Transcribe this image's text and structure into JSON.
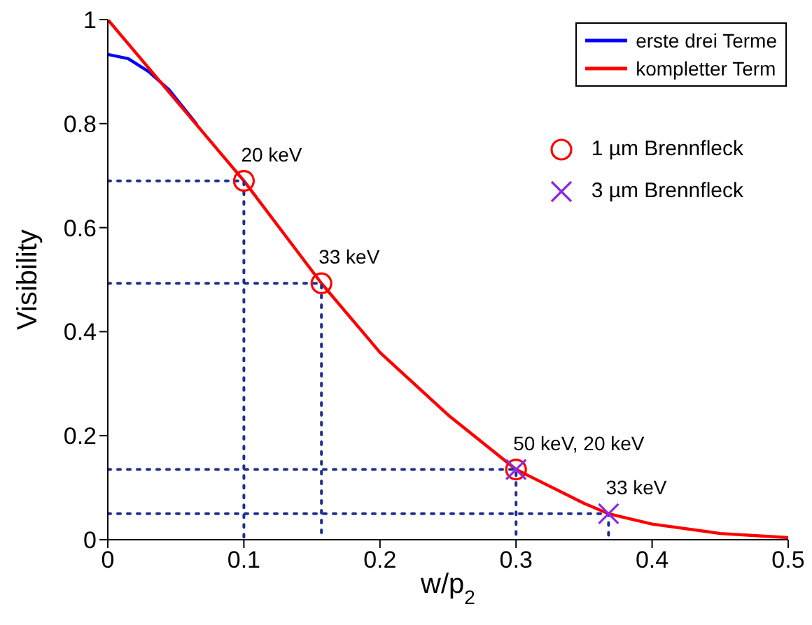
{
  "chart_data": {
    "type": "line",
    "xlabel": "w/p$_{2}$",
    "ylabel": "Visibility",
    "xlim": [
      0,
      0.5
    ],
    "xticks": [
      0,
      0.1,
      0.2,
      0.3,
      0.4,
      0.5
    ],
    "ylim": [
      0,
      1
    ],
    "yticks": [
      0,
      0.2,
      0.4,
      0.6,
      0.8,
      1
    ],
    "grid": false,
    "legend": "top right",
    "series": [
      {
        "name": "erste drei Terme",
        "color": "#0000ff",
        "line_style": "solid",
        "marker": "none",
        "x": [
          0,
          0.015,
          0.03,
          0.045,
          0.065
        ],
        "values": [
          0.933,
          0.925,
          0.9,
          0.865,
          0.8
        ]
      },
      {
        "name": "kompletter Term",
        "color": "#ff0000",
        "line_style": "solid",
        "marker": "none",
        "x": [
          0,
          0.05,
          0.1,
          0.157,
          0.2,
          0.25,
          0.3,
          0.35,
          0.368,
          0.4,
          0.45,
          0.5
        ],
        "values": [
          1,
          0.845,
          0.69,
          0.493,
          0.36,
          0.24,
          0.135,
          0.07,
          0.05,
          0.03,
          0.012,
          0.004
        ]
      },
      {
        "type": "line",
        "color": "#1f2f8f",
        "line_style": "dotted",
        "marker": "none",
        "x": [
          0,
          0.1,
          0.1
        ],
        "values": [
          0.69,
          0.69,
          0
        ]
      },
      {
        "type": "line",
        "color": "#1f2f8f",
        "line_style": "dotted",
        "marker": "none",
        "x": [
          0,
          0.157,
          0.157
        ],
        "values": [
          0.493,
          0.493,
          0
        ]
      },
      {
        "type": "line",
        "color": "#1f2f8f",
        "line_style": "dotted",
        "marker": "none",
        "x": [
          0,
          0.3,
          0.3
        ],
        "values": [
          0.135,
          0.135,
          0
        ]
      },
      {
        "type": "line",
        "color": "#1f2f8f",
        "line_style": "dotted",
        "marker": "none",
        "x": [
          0,
          0.368,
          0.368
        ],
        "values": [
          0.05,
          0.05,
          0
        ]
      },
      {
        "name": "1 µm Brennfleck",
        "type": "scatter",
        "color": "#ff0000",
        "marker": "circle",
        "x": [
          0.1,
          0.157,
          0.3
        ],
        "values": [
          0.69,
          0.493,
          0.135
        ]
      },
      {
        "name": "3 µm Brennfleck",
        "type": "scatter",
        "color": "#8a2be2",
        "marker": "cross",
        "x": [
          0.3,
          0.368
        ],
        "values": [
          0.135,
          0.05
        ]
      }
    ],
    "annotations": [
      {
        "text": "20 keV",
        "x": 0.1,
        "y": 0.69
      },
      {
        "text": "33 keV",
        "x": 0.157,
        "y": 0.493
      },
      {
        "text": "50 keV, 20 keV",
        "x": 0.3,
        "y": 0.135
      },
      {
        "text": "33 keV",
        "x": 0.368,
        "y": 0.05
      }
    ]
  }
}
